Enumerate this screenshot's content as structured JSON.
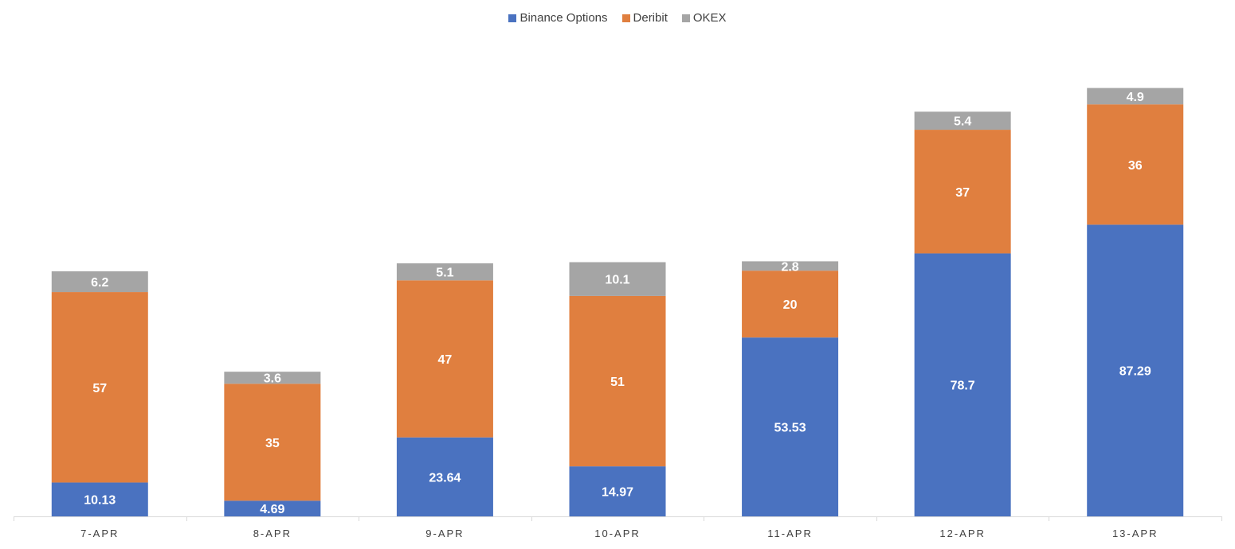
{
  "chart_data": {
    "type": "bar",
    "stacked": true,
    "title": "",
    "xlabel": "",
    "ylabel": "",
    "categories": [
      "7-APR",
      "8-APR",
      "9-APR",
      "10-APR",
      "11-APR",
      "12-APR",
      "13-APR"
    ],
    "series": [
      {
        "name": "Binance Options",
        "color": "#4a72c0",
        "values": [
          10.13,
          4.69,
          23.64,
          14.97,
          53.53,
          78.7,
          87.29
        ],
        "labels": [
          "10.13",
          "4.69",
          "23.64",
          "14.97",
          "53.53",
          "78.7",
          "87.29"
        ]
      },
      {
        "name": "Deribit",
        "color": "#e07f3f",
        "values": [
          57,
          35,
          47,
          51,
          20,
          37,
          36
        ],
        "labels": [
          "57",
          "35",
          "47",
          "51",
          "20",
          "37",
          "36"
        ]
      },
      {
        "name": "OKEX",
        "color": "#a5a5a5",
        "values": [
          6.2,
          3.6,
          5.1,
          10.1,
          2.8,
          5.4,
          4.9
        ],
        "labels": [
          "6.2",
          "3.6",
          "5.1",
          "10.1",
          "2.8",
          "5.4",
          "4.9"
        ]
      }
    ],
    "ylim": [
      0,
      130
    ],
    "grid": false,
    "legend_position": "top-center",
    "data_labels": true
  }
}
